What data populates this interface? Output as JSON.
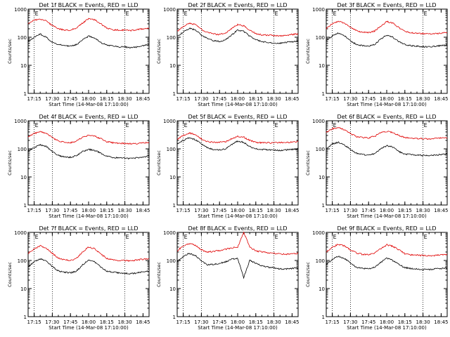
{
  "colors": {
    "events": "#000000",
    "lld": "#e00000",
    "axes": "#000000",
    "background": "#ffffff"
  },
  "common": {
    "ylabel": "Counts/sec",
    "xlabel": "Start Time (14-Mar-08 17:10:00)",
    "x_ticks": [
      "17:15",
      "17:30",
      "17:45",
      "18:00",
      "18:15",
      "18:30",
      "18:45"
    ],
    "y_ticks": [
      "1",
      "10",
      "100",
      "1000"
    ],
    "marker_label": "E",
    "marker_times": [
      "17:15",
      "17:30",
      "18:30"
    ]
  },
  "chart_data": [
    {
      "type": "line",
      "title": "Det 1f BLACK = Events, RED = LLD",
      "xlabel": "Start Time (14-Mar-08 17:10:00)",
      "ylabel": "Counts/sec",
      "x": [
        "17:10",
        "17:15",
        "17:20",
        "17:25",
        "17:30",
        "17:35",
        "17:40",
        "17:45",
        "17:50",
        "17:55",
        "18:00",
        "18:05",
        "18:10",
        "18:15",
        "18:20",
        "18:25",
        "18:30",
        "18:35",
        "18:40",
        "18:45",
        "18:50"
      ],
      "series": [
        {
          "name": "LLD",
          "color": "#e00000",
          "values": [
            320,
            400,
            450,
            380,
            260,
            200,
            180,
            180,
            210,
            320,
            460,
            420,
            300,
            210,
            185,
            180,
            180,
            170,
            185,
            200,
            210
          ]
        },
        {
          "name": "Events",
          "color": "#000000",
          "values": [
            70,
            100,
            130,
            100,
            65,
            55,
            50,
            48,
            55,
            80,
            110,
            95,
            65,
            52,
            50,
            45,
            45,
            42,
            45,
            50,
            55
          ]
        }
      ],
      "ylim": [
        1,
        1000
      ],
      "yscale": "log",
      "grid": false
    },
    {
      "type": "line",
      "title": "Det 2f BLACK = Events, RED = LLD",
      "xlabel": "Start Time (14-Mar-08 17:10:00)",
      "ylabel": "Counts/sec",
      "x": [
        "17:10",
        "17:15",
        "17:20",
        "17:25",
        "17:30",
        "17:35",
        "17:40",
        "17:45",
        "17:50",
        "17:55",
        "18:00",
        "18:05",
        "18:10",
        "18:15",
        "18:20",
        "18:25",
        "18:30",
        "18:35",
        "18:40",
        "18:45",
        "18:50"
      ],
      "series": [
        {
          "name": "LLD",
          "color": "#e00000",
          "values": [
            160,
            240,
            320,
            280,
            190,
            150,
            130,
            125,
            140,
            200,
            280,
            250,
            180,
            135,
            120,
            118,
            115,
            112,
            118,
            125,
            130
          ]
        },
        {
          "name": "Events",
          "color": "#000000",
          "values": [
            110,
            150,
            210,
            180,
            120,
            90,
            75,
            70,
            80,
            120,
            180,
            160,
            110,
            80,
            70,
            65,
            62,
            60,
            65,
            70,
            72
          ]
        }
      ],
      "ylim": [
        1,
        1000
      ],
      "yscale": "log",
      "grid": false
    },
    {
      "type": "line",
      "title": "Det 3f BLACK = Events, RED = LLD",
      "xlabel": "Start Time (14-Mar-08 17:10:00)",
      "ylabel": "Counts/sec",
      "x": [
        "17:10",
        "17:15",
        "17:20",
        "17:25",
        "17:30",
        "17:35",
        "17:40",
        "17:45",
        "17:50",
        "17:55",
        "18:00",
        "18:05",
        "18:10",
        "18:15",
        "18:20",
        "18:25",
        "18:30",
        "18:35",
        "18:40",
        "18:45",
        "18:50"
      ],
      "series": [
        {
          "name": "LLD",
          "color": "#e00000",
          "values": [
            200,
            300,
            380,
            320,
            230,
            170,
            150,
            145,
            165,
            250,
            360,
            320,
            220,
            160,
            145,
            140,
            135,
            130,
            135,
            140,
            145
          ]
        },
        {
          "name": "Events",
          "color": "#000000",
          "values": [
            75,
            110,
            140,
            115,
            75,
            55,
            50,
            48,
            55,
            85,
            120,
            100,
            70,
            55,
            50,
            48,
            46,
            45,
            48,
            50,
            52
          ]
        }
      ],
      "ylim": [
        1,
        1000
      ],
      "yscale": "log",
      "grid": false
    },
    {
      "type": "line",
      "title": "Det 4f BLACK = Events, RED = LLD",
      "xlabel": "Start Time (14-Mar-08 17:10:00)",
      "ylabel": "Counts/sec",
      "x": [
        "17:10",
        "17:15",
        "17:20",
        "17:25",
        "17:30",
        "17:35",
        "17:40",
        "17:45",
        "17:50",
        "17:55",
        "18:00",
        "18:05",
        "18:10",
        "18:15",
        "18:20",
        "18:25",
        "18:30",
        "18:35",
        "18:40",
        "18:45",
        "18:50"
      ],
      "series": [
        {
          "name": "LLD",
          "color": "#e00000",
          "values": [
            260,
            350,
            410,
            350,
            250,
            190,
            170,
            165,
            190,
            260,
            300,
            280,
            230,
            180,
            165,
            160,
            155,
            150,
            155,
            165,
            170
          ]
        },
        {
          "name": "Events",
          "color": "#000000",
          "values": [
            80,
            110,
            140,
            120,
            80,
            58,
            52,
            50,
            58,
            80,
            95,
            88,
            70,
            55,
            50,
            48,
            46,
            45,
            48,
            52,
            55
          ]
        }
      ],
      "ylim": [
        1,
        1000
      ],
      "yscale": "log",
      "grid": false
    },
    {
      "type": "line",
      "title": "Det 5f BLACK = Events, RED = LLD",
      "xlabel": "Start Time (14-Mar-08 17:10:00)",
      "ylabel": "Counts/sec",
      "x": [
        "17:10",
        "17:15",
        "17:20",
        "17:25",
        "17:30",
        "17:35",
        "17:40",
        "17:45",
        "17:50",
        "17:55",
        "18:00",
        "18:05",
        "18:10",
        "18:15",
        "18:20",
        "18:25",
        "18:30",
        "18:35",
        "18:40",
        "18:45",
        "18:50"
      ],
      "series": [
        {
          "name": "LLD",
          "color": "#e00000",
          "values": [
            220,
            300,
            370,
            320,
            230,
            180,
            170,
            170,
            180,
            230,
            280,
            260,
            200,
            170,
            165,
            165,
            165,
            165,
            170,
            175,
            180
          ]
        },
        {
          "name": "Events",
          "color": "#000000",
          "values": [
            150,
            200,
            250,
            210,
            150,
            110,
            95,
            92,
            100,
            140,
            190,
            170,
            120,
            100,
            95,
            92,
            90,
            88,
            92,
            95,
            100
          ]
        }
      ],
      "ylim": [
        1,
        1000
      ],
      "yscale": "log",
      "grid": false
    },
    {
      "type": "line",
      "title": "Det 6f BLACK = Events, RED = LLD",
      "xlabel": "Start Time (14-Mar-08 17:10:00)",
      "ylabel": "Counts/sec",
      "x": [
        "17:10",
        "17:15",
        "17:20",
        "17:25",
        "17:30",
        "17:35",
        "17:40",
        "17:45",
        "17:50",
        "17:55",
        "18:00",
        "18:05",
        "18:10",
        "18:15",
        "18:20",
        "18:25",
        "18:30",
        "18:35",
        "18:40",
        "18:45",
        "18:50"
      ],
      "series": [
        {
          "name": "LLD",
          "color": "#e00000",
          "values": [
            380,
            520,
            560,
            480,
            350,
            270,
            250,
            245,
            280,
            380,
            420,
            380,
            300,
            250,
            240,
            235,
            230,
            225,
            235,
            245,
            250
          ]
        },
        {
          "name": "Events",
          "color": "#000000",
          "values": [
            100,
            150,
            170,
            140,
            95,
            70,
            62,
            60,
            68,
            100,
            130,
            115,
            80,
            65,
            62,
            60,
            58,
            57,
            60,
            62,
            65
          ]
        }
      ],
      "ylim": [
        1,
        1000
      ],
      "yscale": "log",
      "grid": false
    },
    {
      "type": "line",
      "title": "Det 7f BLACK = Events, RED = LLD",
      "xlabel": "Start Time (14-Mar-08 17:10:00)",
      "ylabel": "Counts/sec",
      "x": [
        "17:10",
        "17:15",
        "17:20",
        "17:25",
        "17:30",
        "17:35",
        "17:40",
        "17:45",
        "17:50",
        "17:55",
        "18:00",
        "18:05",
        "18:10",
        "18:15",
        "18:20",
        "18:25",
        "18:30",
        "18:35",
        "18:40",
        "18:45",
        "18:50"
      ],
      "series": [
        {
          "name": "LLD",
          "color": "#e00000",
          "values": [
            180,
            260,
            330,
            280,
            180,
            120,
            105,
            100,
            120,
            200,
            300,
            260,
            170,
            120,
            105,
            100,
            100,
            98,
            105,
            110,
            115
          ]
        },
        {
          "name": "Events",
          "color": "#000000",
          "values": [
            60,
            90,
            115,
            95,
            60,
            42,
            38,
            36,
            42,
            70,
            105,
            90,
            58,
            42,
            38,
            36,
            35,
            34,
            36,
            40,
            42
          ]
        }
      ],
      "ylim": [
        1,
        1000
      ],
      "yscale": "log",
      "grid": false
    },
    {
      "type": "line",
      "title": "Det 8f BLACK = Events, RED = LLD",
      "xlabel": "Start Time (14-Mar-08 17:10:00)",
      "ylabel": "Counts/sec",
      "x": [
        "17:10",
        "17:15",
        "17:20",
        "17:25",
        "17:30",
        "17:35",
        "17:40",
        "17:45",
        "17:50",
        "17:55",
        "18:00",
        "18:05",
        "18:10",
        "18:15",
        "18:20",
        "18:25",
        "18:30",
        "18:35",
        "18:40",
        "18:45",
        "18:50"
      ],
      "series": [
        {
          "name": "LLD",
          "color": "#e00000",
          "values": [
            220,
            330,
            400,
            350,
            240,
            200,
            210,
            230,
            250,
            280,
            300,
            1000,
            300,
            220,
            200,
            190,
            180,
            170,
            165,
            170,
            180
          ]
        },
        {
          "name": "Events",
          "color": "#000000",
          "values": [
            90,
            140,
            180,
            150,
            95,
            70,
            72,
            80,
            90,
            110,
            120,
            25,
            100,
            80,
            65,
            58,
            55,
            50,
            50,
            52,
            55
          ]
        }
      ],
      "ylim": [
        1,
        1000
      ],
      "yscale": "log",
      "grid": false
    },
    {
      "type": "line",
      "title": "Det 9f BLACK = Events, RED = LLD",
      "xlabel": "Start Time (14-Mar-08 17:10:00)",
      "ylabel": "Counts/sec",
      "x": [
        "17:10",
        "17:15",
        "17:20",
        "17:25",
        "17:30",
        "17:35",
        "17:40",
        "17:45",
        "17:50",
        "17:55",
        "18:00",
        "18:05",
        "18:10",
        "18:15",
        "18:20",
        "18:25",
        "18:30",
        "18:35",
        "18:40",
        "18:45",
        "18:50"
      ],
      "series": [
        {
          "name": "LLD",
          "color": "#e00000",
          "values": [
            200,
            290,
            380,
            330,
            240,
            185,
            165,
            160,
            185,
            260,
            360,
            320,
            240,
            175,
            160,
            155,
            150,
            145,
            150,
            158,
            165
          ]
        },
        {
          "name": "Events",
          "color": "#000000",
          "values": [
            70,
            110,
            140,
            120,
            80,
            58,
            52,
            50,
            58,
            85,
            120,
            100,
            72,
            56,
            52,
            50,
            48,
            47,
            50,
            52,
            55
          ]
        }
      ],
      "ylim": [
        1,
        1000
      ],
      "yscale": "log",
      "grid": false
    }
  ]
}
